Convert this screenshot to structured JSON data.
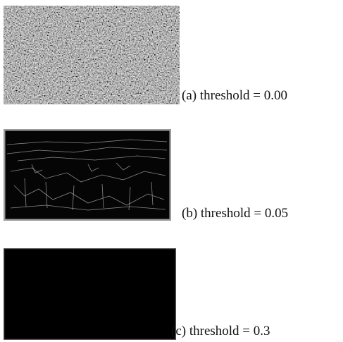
{
  "figures": [
    {
      "caption": "(a) threshold = 0.00"
    },
    {
      "caption": "(b) threshold = 0.05"
    },
    {
      "caption": "(c) threshold = 0.3"
    }
  ]
}
